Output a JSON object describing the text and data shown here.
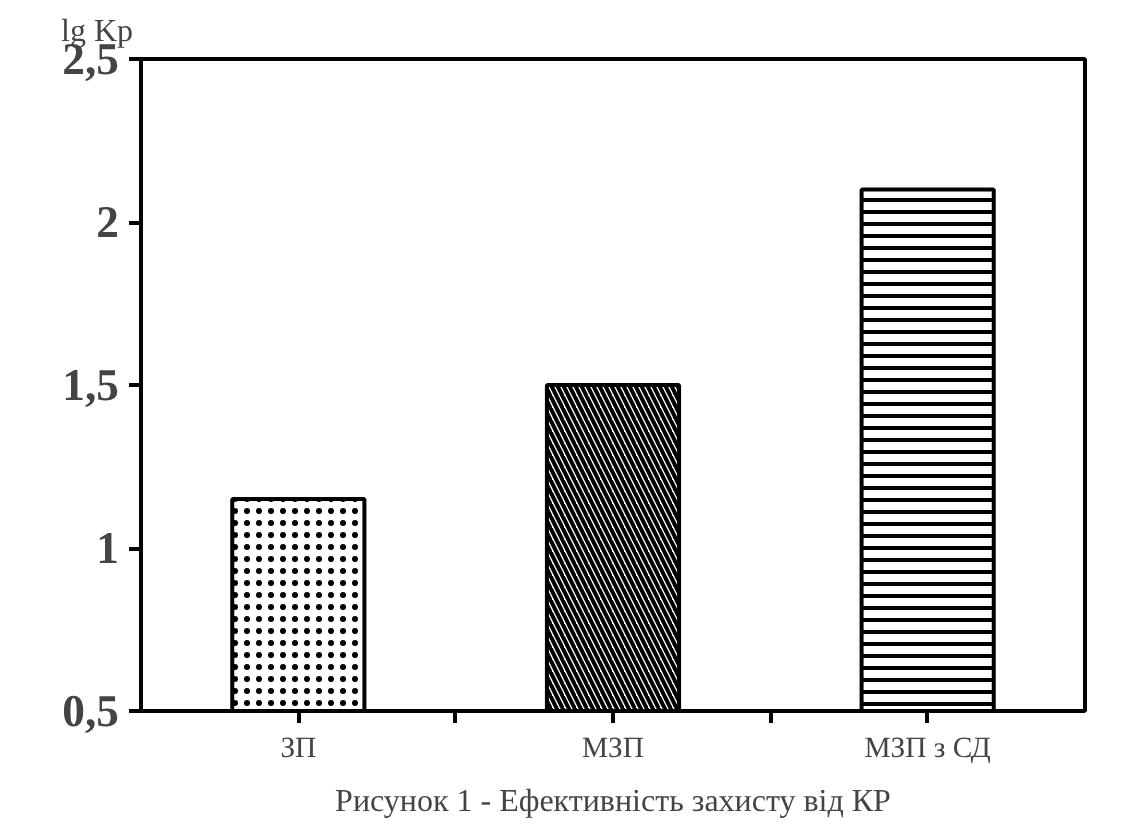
{
  "chart_data": {
    "type": "bar",
    "ylabel": "lg Kp",
    "categories": [
      "ЗП",
      "МЗП",
      "МЗП з СД"
    ],
    "values": [
      1.15,
      1.5,
      2.1
    ],
    "color": "#000000",
    "ylim": [
      0.5,
      2.5
    ],
    "yticks": [
      {
        "value": 0.5,
        "label": "0,5"
      },
      1,
      {
        "value": 1.5,
        "label": "1,5"
      },
      2,
      {
        "value": 2.5,
        "label": "2,5"
      }
    ],
    "grid": false,
    "annotations": [
      "Рисунок 1 - Ефективність захисту від КР"
    ]
  }
}
